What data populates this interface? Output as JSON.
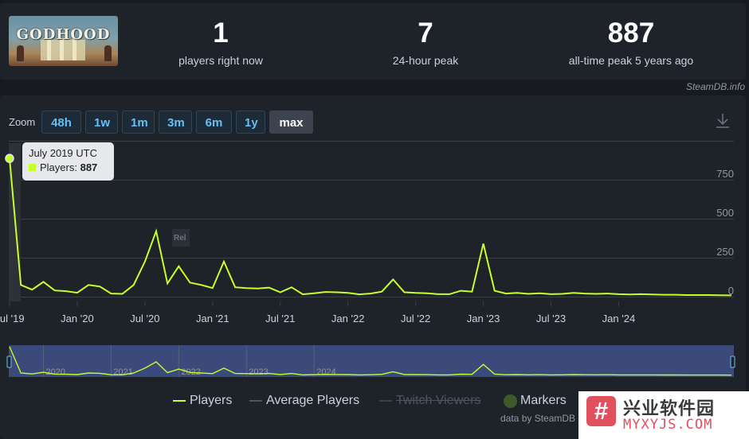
{
  "header": {
    "logo_text": "GODHOOD",
    "stats": [
      {
        "value": "1",
        "label": "players right now"
      },
      {
        "value": "7",
        "label": "24-hour peak"
      },
      {
        "value": "887",
        "label": "all-time peak 5 years ago"
      }
    ],
    "source_credit": "SteamDB.info"
  },
  "toolbar": {
    "zoom_label": "Zoom",
    "zoom_buttons": [
      "48h",
      "1w",
      "1m",
      "3m",
      "6m",
      "1y",
      "max"
    ],
    "active_zoom": "max"
  },
  "tooltip": {
    "date": "July 2019 UTC",
    "series_label": "Players:",
    "value": "887"
  },
  "legend": {
    "players": "Players",
    "average_players": "Average Players",
    "twitch_viewers": "Twitch Viewers",
    "markers": "Markers"
  },
  "footer_credit": "data by SteamDB",
  "watermark": {
    "chinese": "兴业软件园",
    "url": "MYXYJS.COM"
  },
  "colors": {
    "players_line": "#c6ff2a",
    "average_line": "#4b5661",
    "navigator_fill": "#3b4a7a",
    "accent_link": "#66c0f4"
  },
  "chart_data": {
    "type": "line",
    "title": "",
    "xlabel": "",
    "ylabel": "",
    "ylim": [
      0,
      900
    ],
    "y_ticks": [
      0,
      250,
      500,
      750
    ],
    "x_tick_labels": [
      "Jul '19",
      "Jan '20",
      "Jul '20",
      "Jan '21",
      "Jul '21",
      "Jan '22",
      "Jul '22",
      "Jan '23",
      "Jul '23",
      "Jan '24"
    ],
    "navigator_labels": [
      "2020",
      "2021",
      "2022",
      "2023",
      "2024"
    ],
    "release_marker": {
      "label": "Rel",
      "x": 12.5
    },
    "series": [
      {
        "name": "Players",
        "x": [
          0,
          1,
          2,
          3,
          4,
          5,
          6,
          7,
          8,
          9,
          10,
          11,
          12,
          13,
          14,
          15,
          16,
          17,
          18,
          19,
          20,
          21,
          22,
          23,
          24,
          25,
          26,
          27,
          28,
          29,
          30,
          31,
          32,
          33,
          34,
          35,
          36,
          37,
          38,
          39,
          40,
          41,
          42,
          43,
          44,
          45,
          46,
          47,
          48,
          49,
          50,
          51,
          52,
          53,
          54,
          55,
          56,
          57,
          58,
          59,
          60,
          61,
          62,
          63,
          64
        ],
        "values": [
          887,
          75,
          45,
          95,
          40,
          35,
          25,
          75,
          65,
          20,
          18,
          75,
          225,
          420,
          85,
          195,
          90,
          75,
          55,
          225,
          60,
          55,
          52,
          58,
          28,
          60,
          15,
          22,
          30,
          28,
          24,
          15,
          20,
          32,
          110,
          28,
          24,
          22,
          16,
          16,
          38,
          32,
          340,
          38,
          20,
          24,
          18,
          22,
          16,
          18,
          24,
          20,
          18,
          20,
          16,
          14,
          16,
          14,
          12,
          12,
          10,
          10,
          10,
          9,
          8
        ]
      }
    ]
  }
}
